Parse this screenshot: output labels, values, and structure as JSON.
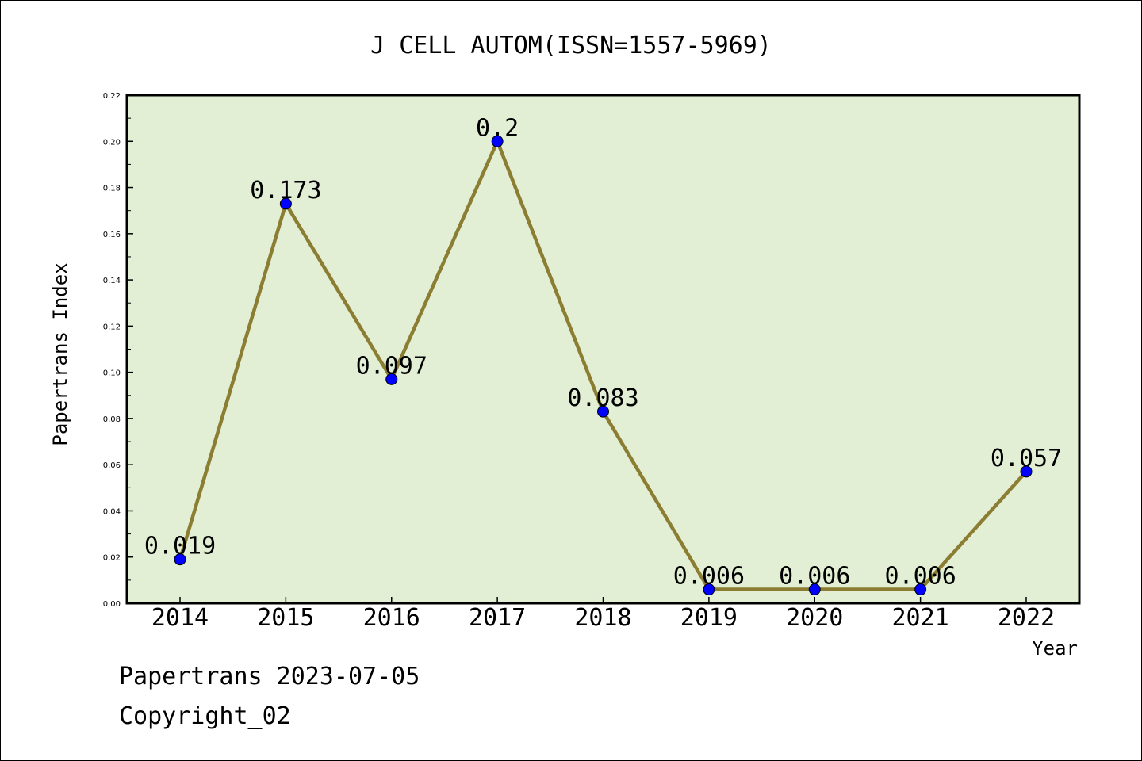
{
  "colors": {
    "plot_background": "#e2efd5",
    "line": "#8b7d32",
    "marker": "#0000ff",
    "axis": "#000000",
    "page_background": "#ffffff"
  },
  "chart_data": {
    "type": "line",
    "title": "J CELL AUTOM(ISSN=1557-5969)",
    "xlabel": "Year",
    "ylabel": "Papertrans Index",
    "categories": [
      "2014",
      "2015",
      "2016",
      "2017",
      "2018",
      "2019",
      "2020",
      "2021",
      "2022"
    ],
    "series": [
      {
        "values": [
          0.019,
          0.173,
          0.097,
          0.2,
          0.083,
          0.006,
          0.006,
          0.006,
          0.057
        ],
        "data_labels": [
          "0.019",
          "0.173",
          "0.097",
          "0.2",
          "0.083",
          "0.006",
          "0.006",
          "0.006",
          "0.057"
        ]
      }
    ],
    "ylim": [
      0,
      0.22
    ],
    "yticks": [
      "0.00",
      "0.02",
      "0.04",
      "0.06",
      "0.08",
      "0.10",
      "0.12",
      "0.14",
      "0.16",
      "0.18",
      "0.20",
      "0.22"
    ],
    "grid": false,
    "legend": "none"
  },
  "footer": {
    "line1": "Papertrans 2023-07-05",
    "line2": "Copyright_02"
  }
}
